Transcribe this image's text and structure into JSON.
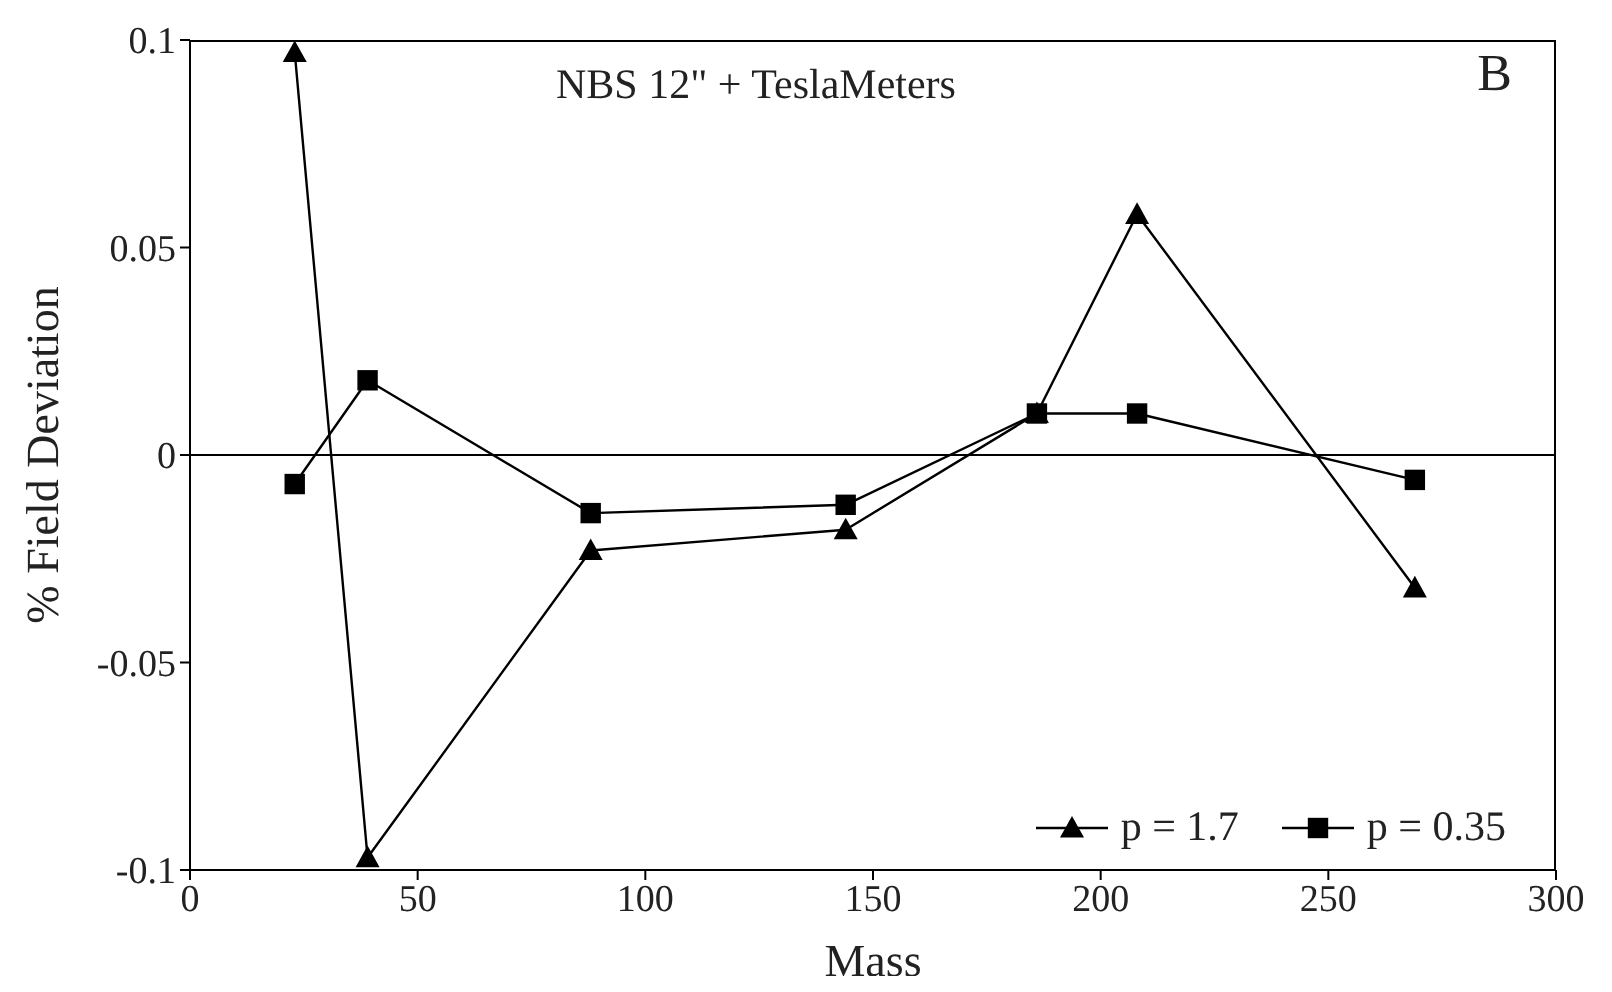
{
  "chart_data": {
    "type": "line",
    "xlabel": "Mass",
    "ylabel": "% Field Deviation",
    "annotations": [
      "NBS 12\" + TeslaMeters",
      "B"
    ],
    "xlim": [
      0,
      300
    ],
    "xticks": [
      0,
      50,
      100,
      150,
      200,
      250,
      300
    ],
    "ylim": [
      -0.1,
      0.1
    ],
    "yticks": [
      -0.1,
      -0.05,
      0,
      0.05,
      0.1
    ],
    "grid": false,
    "legend": "bottom right",
    "ref_lines": [
      {
        "axis": "y",
        "value": 0,
        "color": "#000000"
      }
    ],
    "series": [
      {
        "name": "p = 1.7",
        "color": "#000000",
        "marker": "triangle",
        "x": [
          23,
          39,
          88,
          144,
          186,
          208,
          269
        ],
        "values": [
          0.097,
          -0.097,
          -0.023,
          -0.018,
          0.01,
          0.058,
          -0.032
        ]
      },
      {
        "name": "p = 0.35",
        "color": "#000000",
        "marker": "square",
        "x": [
          23,
          39,
          88,
          144,
          186,
          208,
          269
        ],
        "values": [
          -0.007,
          0.018,
          -0.014,
          -0.012,
          0.01,
          0.01,
          -0.006
        ]
      }
    ]
  }
}
